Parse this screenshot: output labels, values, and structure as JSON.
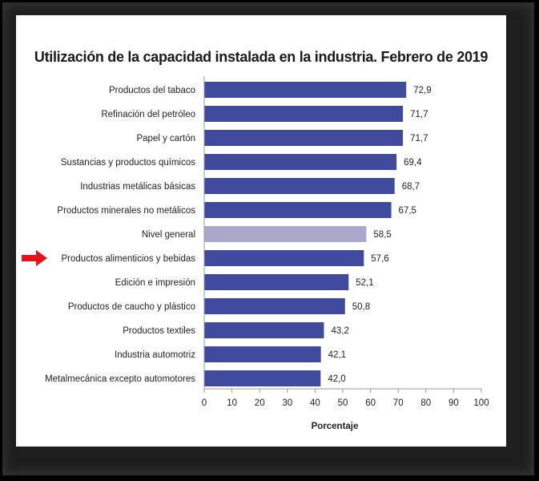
{
  "chart_data": {
    "type": "bar",
    "orientation": "horizontal",
    "title": "Utilización de la capacidad instalada en la industria. Febrero de 2019",
    "xlabel": "Porcentaje",
    "ylabel": "",
    "xlim": [
      0,
      100
    ],
    "x_ticks": [
      0,
      10,
      20,
      30,
      40,
      50,
      60,
      70,
      80,
      90,
      100
    ],
    "grid": false,
    "categories": [
      "Productos del tabaco",
      "Refinación del petróleo",
      "Papel y cartón",
      "Sustancias y productos químicos",
      "Industrias metálicas básicas",
      "Productos minerales no metálicos",
      "Nivel general",
      "Productos alimenticios y bebidas",
      "Edición e impresión",
      "Productos de caucho y plástico",
      "Productos textiles",
      "Industria automotriz",
      "Metalmecánica excepto automotores"
    ],
    "values": [
      72.9,
      71.7,
      71.7,
      69.4,
      68.7,
      67.5,
      58.5,
      57.6,
      52.1,
      50.8,
      43.2,
      42.1,
      42.0
    ],
    "value_labels": [
      "72,9",
      "71,7",
      "71,7",
      "69,4",
      "68,7",
      "67,5",
      "58,5",
      "57,6",
      "52,1",
      "50,8",
      "43,2",
      "42,1",
      "42,0"
    ],
    "highlight_category": "Nivel general",
    "arrow_category": "Productos alimenticios y bebidas",
    "colors": {
      "bar": "#3f4a9c",
      "highlight_bar": "#a9a8cc",
      "arrow": "#e8111a"
    }
  }
}
